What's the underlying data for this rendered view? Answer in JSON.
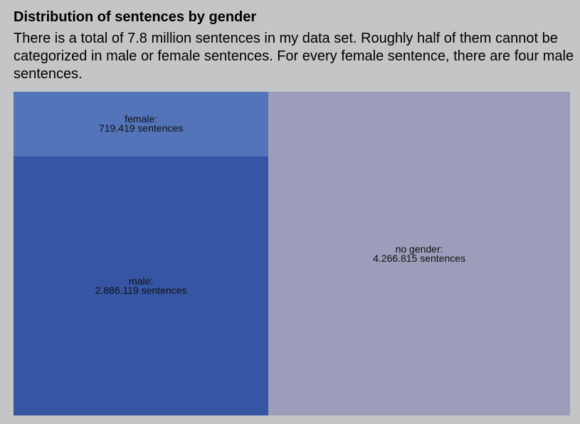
{
  "title": "Distribution of sentences by gender",
  "subtitle": "There is a total of 7.8 million sentences in my data set. Roughly half of them cannot be categorized in male or female sentences. For every female sentence, there are four male sentences.",
  "chart_data": {
    "type": "treemap",
    "title": "Distribution of sentences by gender",
    "items": [
      {
        "name": "female:",
        "label": "719.419 sentences",
        "value": 719419,
        "color": "#5374b9"
      },
      {
        "name": "male:",
        "label": "2.886.119 sentences",
        "value": 2886119,
        "color": "#3656a3"
      },
      {
        "name": "no gender:",
        "label": "4.266.815 sentences",
        "value": 4266815,
        "color": "#9c9cbb"
      }
    ]
  }
}
